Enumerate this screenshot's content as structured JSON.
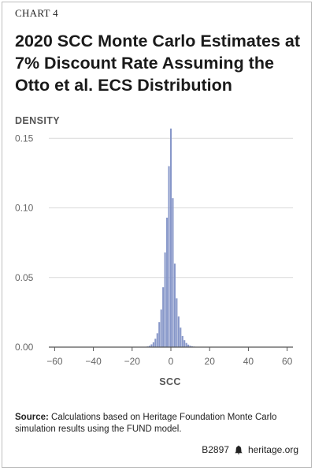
{
  "chart_label": "CHART 4",
  "title": "2020 SCC Monte Carlo Estimates at 7% Discount Rate Assuming the Otto et al. ECS Distribution",
  "source": {
    "label": "Source:",
    "text": "Calculations based on Heritage Foundation Monte Carlo simulation results using the FUND model."
  },
  "footer": {
    "code": "B2897",
    "site": "heritage.org"
  },
  "colors": {
    "bar": "#8797c9",
    "grid": "#d9d9d9",
    "axis": "#555555"
  },
  "chart_data": {
    "type": "bar",
    "ylabel": "DENSITY",
    "xlabel": "SCC",
    "xlim": [
      -63,
      63
    ],
    "ylim": [
      0,
      0.17
    ],
    "xticks": [
      -60,
      -40,
      -20,
      0,
      20,
      40,
      60
    ],
    "yticks": [
      "0.00",
      "0.05",
      "0.10",
      "0.15"
    ],
    "bin_width": 1,
    "bins": [
      {
        "x": -13,
        "y": 0.0003
      },
      {
        "x": -12,
        "y": 0.0005
      },
      {
        "x": -11,
        "y": 0.001
      },
      {
        "x": -10,
        "y": 0.002
      },
      {
        "x": -9,
        "y": 0.0035
      },
      {
        "x": -8,
        "y": 0.006
      },
      {
        "x": -7,
        "y": 0.01
      },
      {
        "x": -6,
        "y": 0.018
      },
      {
        "x": -5,
        "y": 0.027
      },
      {
        "x": -4,
        "y": 0.043
      },
      {
        "x": -3,
        "y": 0.068
      },
      {
        "x": -2,
        "y": 0.093
      },
      {
        "x": -1,
        "y": 0.13
      },
      {
        "x": 0,
        "y": 0.157
      },
      {
        "x": 1,
        "y": 0.107
      },
      {
        "x": 2,
        "y": 0.06
      },
      {
        "x": 3,
        "y": 0.035
      },
      {
        "x": 4,
        "y": 0.022
      },
      {
        "x": 5,
        "y": 0.014
      },
      {
        "x": 6,
        "y": 0.008
      },
      {
        "x": 7,
        "y": 0.005
      },
      {
        "x": 8,
        "y": 0.003
      },
      {
        "x": 9,
        "y": 0.0018
      },
      {
        "x": 10,
        "y": 0.001
      },
      {
        "x": 11,
        "y": 0.0006
      },
      {
        "x": 12,
        "y": 0.0004
      },
      {
        "x": 13,
        "y": 0.0002
      }
    ]
  }
}
